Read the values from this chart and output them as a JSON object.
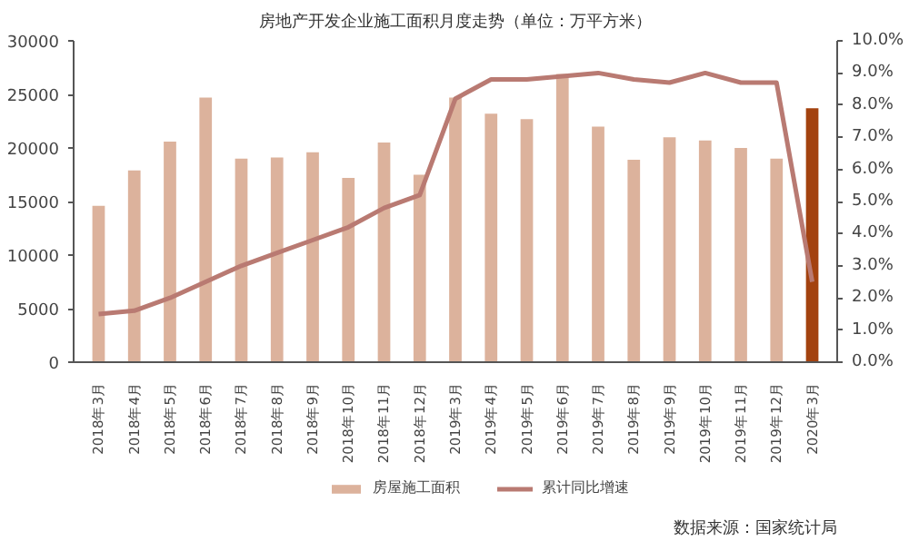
{
  "chart_data": {
    "type": "bar",
    "title": "房地产开发企业施工面积月度走势（单位：万平方米）",
    "categories": [
      "2018年3月",
      "2018年4月",
      "2018年5月",
      "2018年6月",
      "2018年7月",
      "2018年8月",
      "2018年9月",
      "2018年10月",
      "2018年11月",
      "2018年12月",
      "2019年3月",
      "2019年4月",
      "2019年5月",
      "2019年6月",
      "2019年7月",
      "2019年8月",
      "2019年9月",
      "2019年10月",
      "2019年11月",
      "2019年12月",
      "2020年3月"
    ],
    "series": [
      {
        "name": "房屋施工面积",
        "color": "#dcb29c",
        "colors": [
          "#dcb29c",
          "#dcb29c",
          "#dcb29c",
          "#dcb29c",
          "#dcb29c",
          "#dcb29c",
          "#dcb29c",
          "#dcb29c",
          "#dcb29c",
          "#dcb29c",
          "#dcb29c",
          "#dcb29c",
          "#dcb29c",
          "#dcb29c",
          "#dcb29c",
          "#dcb29c",
          "#dcb29c",
          "#dcb29c",
          "#dcb29c",
          "#dcb29c",
          "#a3420f"
        ],
        "values": [
          14600,
          17900,
          20600,
          24700,
          19000,
          19100,
          19600,
          17200,
          20500,
          17500,
          24700,
          23200,
          22700,
          26900,
          22000,
          18900,
          21000,
          20700,
          20000,
          19000,
          23700
        ]
      },
      {
        "name": "累计同比增速",
        "type": "line",
        "axis": "y2",
        "color": "#b97a72",
        "values": [
          1.5,
          1.6,
          2.0,
          2.5,
          3.0,
          3.4,
          3.8,
          4.2,
          4.8,
          5.2,
          8.2,
          8.8,
          8.8,
          8.9,
          9.0,
          8.8,
          8.7,
          9.0,
          8.7,
          8.7,
          2.5
        ]
      }
    ],
    "ylim": [
      0,
      30000
    ],
    "yticks": [
      0,
      5000,
      10000,
      15000,
      20000,
      25000,
      30000
    ],
    "y2lim": [
      0,
      10
    ],
    "y2ticks": [
      {
        "value": 0,
        "label": "0.0%"
      },
      {
        "value": 1,
        "label": "1.0%"
      },
      {
        "value": 2,
        "label": "2.0%"
      },
      {
        "value": 3,
        "label": "3.0%"
      },
      {
        "value": 4,
        "label": "4.0%"
      },
      {
        "value": 5,
        "label": "5.0%"
      },
      {
        "value": 6,
        "label": "6.0%"
      },
      {
        "value": 7,
        "label": "7.0%"
      },
      {
        "value": 8,
        "label": "8.0%"
      },
      {
        "value": 9,
        "label": "9.0%"
      },
      {
        "value": 10,
        "label": "10.0%"
      }
    ],
    "legend": "bottom",
    "grid": false,
    "marker": "none",
    "line_style": "solid",
    "annotations": [
      "数据来源：国家统计局"
    ]
  }
}
